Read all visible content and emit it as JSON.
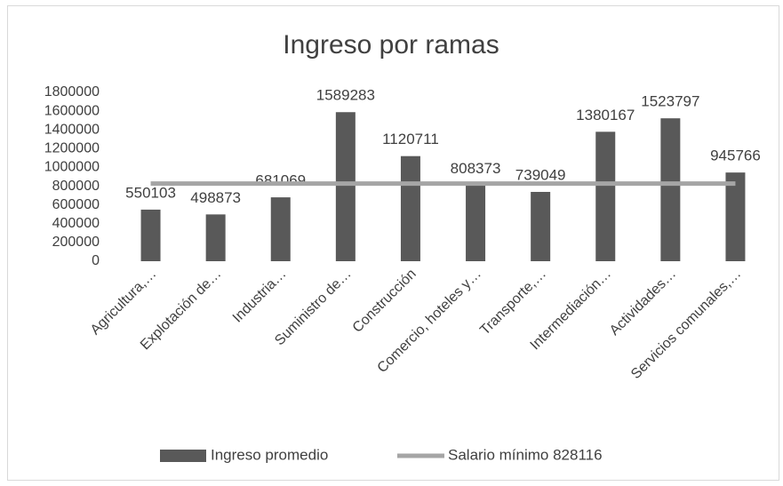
{
  "chart_data": {
    "type": "bar",
    "title": "Ingreso por ramas",
    "categories": [
      "Agricultura,…",
      "Explotación de…",
      "Industria…",
      "Suministro de…",
      "Construcción",
      "Comercio, hoteles y…",
      "Transporte,…",
      "Intermediación…",
      "Actividades…",
      "Servicios comunales,…"
    ],
    "series": [
      {
        "name": "Ingreso promedio",
        "type": "bar",
        "color": "#595959",
        "values": [
          550103,
          498873,
          681069,
          1589283,
          1120711,
          808373,
          739049,
          1380167,
          1523797,
          945766
        ]
      },
      {
        "name": "Salario mínimo 828116",
        "type": "line",
        "color": "#a5a5a5",
        "values": [
          828116,
          828116,
          828116,
          828116,
          828116,
          828116,
          828116,
          828116,
          828116,
          828116
        ]
      }
    ],
    "ylim": [
      0,
      1800000
    ],
    "yticks": [
      0,
      200000,
      400000,
      600000,
      800000,
      1000000,
      1200000,
      1400000,
      1600000,
      1800000
    ],
    "grid": false,
    "legend": "bottom"
  }
}
